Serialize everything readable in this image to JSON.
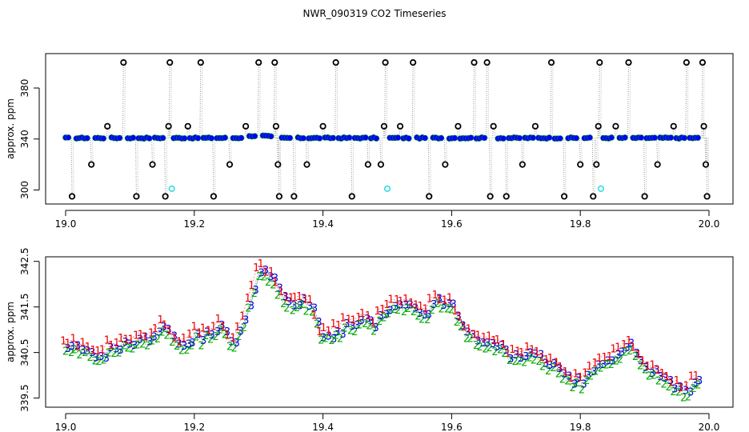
{
  "title": "NWR_090319  CO2 Timeseries",
  "chart_data": [
    {
      "panel": "top",
      "type": "scatter",
      "ylabel": "approx. ppm",
      "xlim": [
        19.0,
        20.0
      ],
      "ylim": [
        289,
        407
      ],
      "x_ticks": [
        "19.0",
        "19.2",
        "19.4",
        "19.6",
        "19.8",
        "20.0"
      ],
      "y_ticks": [
        "300",
        "340",
        "380"
      ],
      "baseline_value": 340.8,
      "baseline_color": "#0000ff",
      "baseline_edge_color": "#00a000",
      "outlier_color": "#000000",
      "connector_color": "#999999",
      "cyan_color": "#33dddd",
      "outliers": [
        {
          "x": 19.01,
          "y": 295
        },
        {
          "x": 19.04,
          "y": 320
        },
        {
          "x": 19.065,
          "y": 350
        },
        {
          "x": 19.09,
          "y": 400
        },
        {
          "x": 19.11,
          "y": 295
        },
        {
          "x": 19.135,
          "y": 320
        },
        {
          "x": 19.155,
          "y": 295
        },
        {
          "x": 19.16,
          "y": 350
        },
        {
          "x": 19.162,
          "y": 400
        },
        {
          "x": 19.19,
          "y": 350
        },
        {
          "x": 19.21,
          "y": 400
        },
        {
          "x": 19.23,
          "y": 295
        },
        {
          "x": 19.255,
          "y": 320
        },
        {
          "x": 19.28,
          "y": 350
        },
        {
          "x": 19.3,
          "y": 400
        },
        {
          "x": 19.325,
          "y": 400
        },
        {
          "x": 19.327,
          "y": 350
        },
        {
          "x": 19.33,
          "y": 320
        },
        {
          "x": 19.332,
          "y": 295
        },
        {
          "x": 19.355,
          "y": 295
        },
        {
          "x": 19.375,
          "y": 320
        },
        {
          "x": 19.4,
          "y": 350
        },
        {
          "x": 19.42,
          "y": 400
        },
        {
          "x": 19.445,
          "y": 295
        },
        {
          "x": 19.47,
          "y": 320
        },
        {
          "x": 19.49,
          "y": 320
        },
        {
          "x": 19.495,
          "y": 350
        },
        {
          "x": 19.497,
          "y": 400
        },
        {
          "x": 19.52,
          "y": 350
        },
        {
          "x": 19.54,
          "y": 400
        },
        {
          "x": 19.565,
          "y": 295
        },
        {
          "x": 19.59,
          "y": 320
        },
        {
          "x": 19.61,
          "y": 350
        },
        {
          "x": 19.635,
          "y": 400
        },
        {
          "x": 19.655,
          "y": 400
        },
        {
          "x": 19.66,
          "y": 295
        },
        {
          "x": 19.665,
          "y": 350
        },
        {
          "x": 19.685,
          "y": 295
        },
        {
          "x": 19.71,
          "y": 320
        },
        {
          "x": 19.73,
          "y": 350
        },
        {
          "x": 19.755,
          "y": 400
        },
        {
          "x": 19.775,
          "y": 295
        },
        {
          "x": 19.8,
          "y": 320
        },
        {
          "x": 19.82,
          "y": 295
        },
        {
          "x": 19.825,
          "y": 320
        },
        {
          "x": 19.828,
          "y": 350
        },
        {
          "x": 19.83,
          "y": 400
        },
        {
          "x": 19.855,
          "y": 350
        },
        {
          "x": 19.875,
          "y": 400
        },
        {
          "x": 19.9,
          "y": 295
        },
        {
          "x": 19.92,
          "y": 320
        },
        {
          "x": 19.945,
          "y": 350
        },
        {
          "x": 19.965,
          "y": 400
        },
        {
          "x": 19.99,
          "y": 400
        },
        {
          "x": 19.992,
          "y": 350
        },
        {
          "x": 19.995,
          "y": 320
        },
        {
          "x": 19.997,
          "y": 295
        }
      ],
      "cyan_points": [
        {
          "x": 19.165,
          "y": 301
        },
        {
          "x": 19.5,
          "y": 301
        },
        {
          "x": 19.832,
          "y": 301
        }
      ]
    },
    {
      "panel": "bottom",
      "type": "scatter",
      "ylabel": "approx. ppm",
      "xlim": [
        19.0,
        20.0
      ],
      "ylim": [
        339.3,
        342.6
      ],
      "x_ticks": [
        "19.0",
        "19.2",
        "19.4",
        "19.6",
        "19.8",
        "20.0"
      ],
      "y_ticks": [
        "339.5",
        "340.5",
        "341.5",
        "342.5"
      ],
      "series": [
        {
          "name": "1",
          "color": "#ee0000",
          "offset": 0.12
        },
        {
          "name": "2",
          "color": "#00aa00",
          "offset": -0.1
        },
        {
          "name": "3",
          "color": "#0000dd",
          "offset": 0.0
        }
      ],
      "line_color": "#555555",
      "trend": {
        "x": [
          19.0,
          19.02,
          19.04,
          19.06,
          19.08,
          19.1,
          19.12,
          19.14,
          19.16,
          19.18,
          19.2,
          19.22,
          19.24,
          19.26,
          19.28,
          19.3,
          19.32,
          19.34,
          19.36,
          19.38,
          19.4,
          19.42,
          19.44,
          19.46,
          19.48,
          19.5,
          19.52,
          19.54,
          19.56,
          19.58,
          19.6,
          19.62,
          19.64,
          19.66,
          19.68,
          19.7,
          19.72,
          19.74,
          19.76,
          19.78,
          19.8,
          19.82,
          19.84,
          19.86,
          19.88,
          19.9,
          19.92,
          19.94,
          19.96,
          19.98,
          19.99
        ],
        "y": [
          340.55,
          340.6,
          340.4,
          340.5,
          340.65,
          340.7,
          340.75,
          340.95,
          341.05,
          340.6,
          340.85,
          340.9,
          341.05,
          340.7,
          341.2,
          342.35,
          342.2,
          341.55,
          341.6,
          341.55,
          340.85,
          340.95,
          341.05,
          341.2,
          341.1,
          341.45,
          341.5,
          341.45,
          341.35,
          341.65,
          341.5,
          340.95,
          340.85,
          340.65,
          340.6,
          340.35,
          340.55,
          340.35,
          340.2,
          339.95,
          339.8,
          340.1,
          340.35,
          340.55,
          340.6,
          340.25,
          340.0,
          339.75,
          339.7,
          339.8,
          339.8
        ]
      }
    }
  ]
}
